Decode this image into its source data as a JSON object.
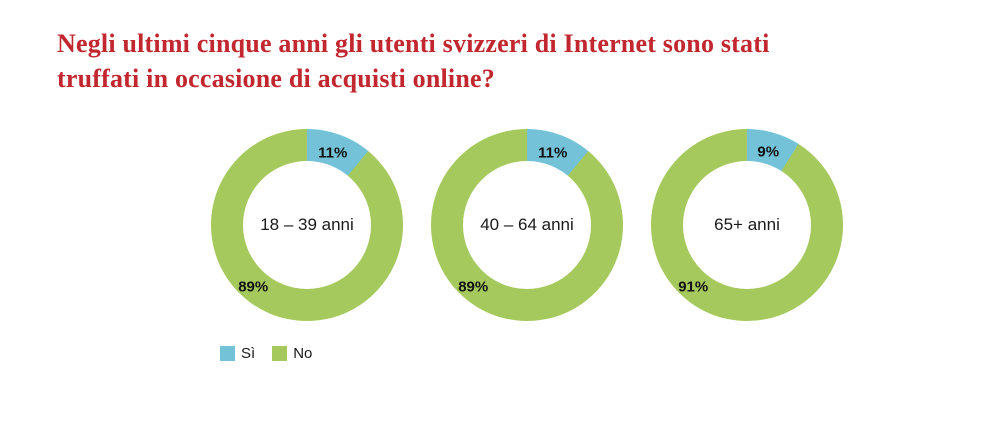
{
  "title": "Negli ultimi cinque anni gli utenti svizzeri di Internet sono stati truffati in occasione di acquisti online?",
  "colors": {
    "title_red": "#c2262e",
    "si_blue": "#74c2d8",
    "no_green": "#a5c95c",
    "label_text": "#1a1a1a",
    "background": "#ffffff"
  },
  "chart_data": {
    "type": "pie",
    "style": "donut",
    "unit": "%",
    "title": "Negli ultimi cinque anni gli utenti svizzeri di Internet sono stati truffati in occasione di acquisti online?",
    "categories": [
      "18 – 39 anni",
      "40 – 64 anni",
      "65+ anni"
    ],
    "series": [
      {
        "name": "Sì",
        "color": "#74c2d8",
        "values": [
          11,
          11,
          9
        ]
      },
      {
        "name": "No",
        "color": "#a5c95c",
        "values": [
          89,
          89,
          91
        ]
      }
    ],
    "data_labels": [
      {
        "category": "18 – 39 anni",
        "si": "11%",
        "no": "89%"
      },
      {
        "category": "40 – 64 anni",
        "si": "11%",
        "no": "89%"
      },
      {
        "category": "65+ anni",
        "si": "9%",
        "no": "91%"
      }
    ],
    "legend_position": "bottom-left",
    "legend_entries": [
      "Sì",
      "No"
    ]
  }
}
